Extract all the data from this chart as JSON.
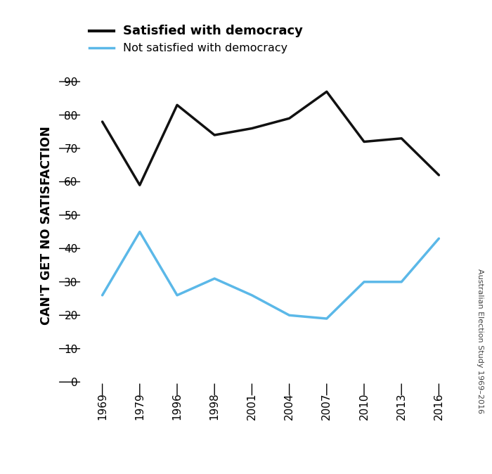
{
  "years": [
    "1969",
    "1979",
    "1996",
    "1998",
    "2001",
    "2004",
    "2007",
    "2010",
    "2013",
    "2016"
  ],
  "satisfied": [
    78,
    59,
    83,
    74,
    76,
    79,
    87,
    72,
    73,
    62
  ],
  "not_satisfied": [
    26,
    45,
    26,
    31,
    26,
    20,
    19,
    30,
    30,
    43
  ],
  "satisfied_color": "#111111",
  "not_satisfied_color": "#5bb8e8",
  "ylabel": "CAN'T GET NO SATISFACTION",
  "ylabel_fontsize": 12.5,
  "legend_satisfied": "Satisfied with democracy",
  "legend_not_satisfied": "Not satisfied with democracy",
  "yticks": [
    0,
    10,
    20,
    30,
    40,
    50,
    60,
    70,
    80,
    90
  ],
  "ylim": [
    -2,
    96
  ],
  "right_label": "Australian Election Study 1969–2016",
  "line_width": 2.5,
  "background_color": "#ffffff"
}
